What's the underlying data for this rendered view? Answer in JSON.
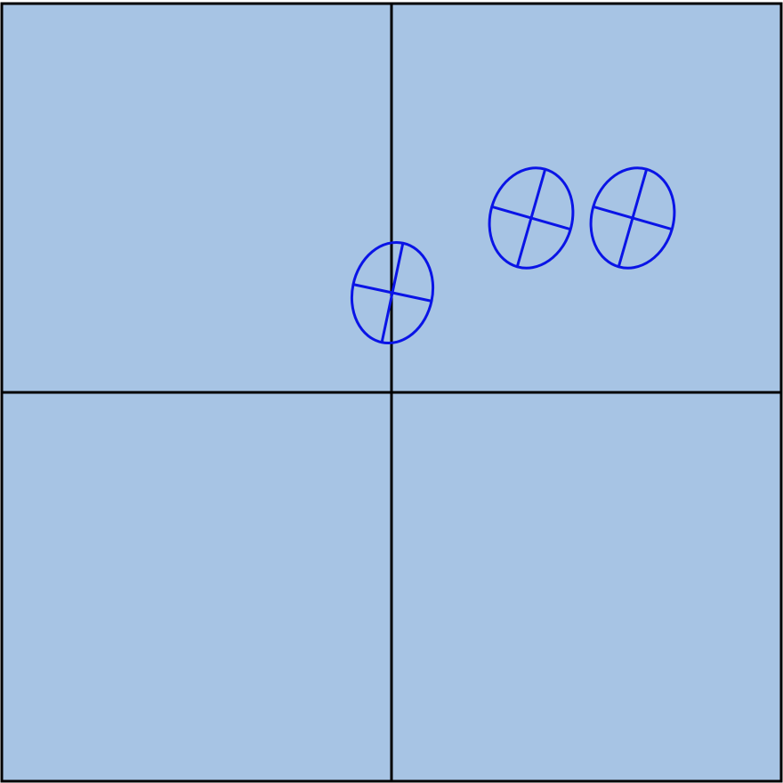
{
  "colors": {
    "background": "#a7c4e4",
    "grid_line": "#000000",
    "marker": "#0a14e6"
  },
  "markers": [
    {
      "name": "marker-near-origin",
      "icon": "ellipse-crosshair-icon"
    },
    {
      "name": "marker-middle",
      "icon": "ellipse-crosshair-icon"
    },
    {
      "name": "marker-right",
      "icon": "ellipse-crosshair-icon"
    }
  ]
}
